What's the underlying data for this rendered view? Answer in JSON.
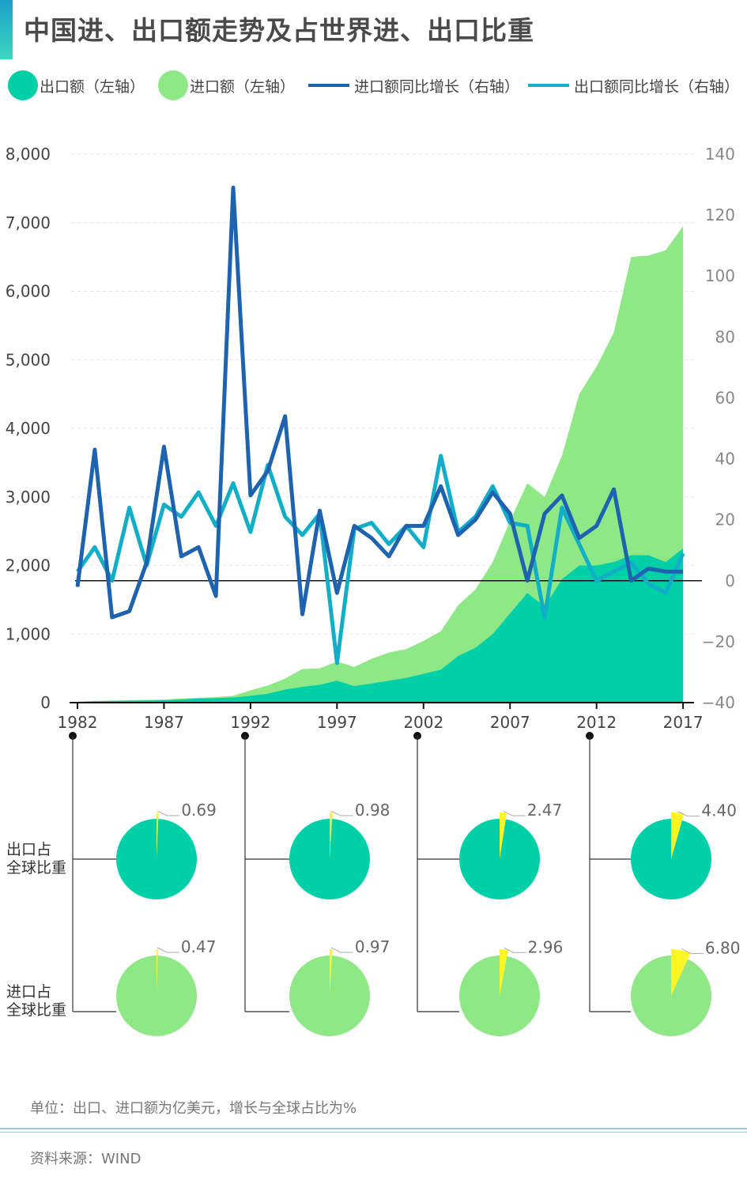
{
  "title": "中国进、出口额走势及占世界进、出口比重",
  "legend": {
    "export": "出口额（左轴）",
    "import": "进口额（左轴）",
    "import_growth": "进口额同比增长（右轴）",
    "export_growth": "出口额同比增长（右轴）"
  },
  "colors": {
    "export": "#00d0a8",
    "import": "#8ee885",
    "import_growth": "#1e63b0",
    "export_growth": "#12aec8",
    "highlight": "#fff426",
    "accent": "#1aa0c8"
  },
  "chart_data": [
    {
      "type": "area+line",
      "title": "中国进、出口额走势",
      "x": [
        1982,
        1983,
        1984,
        1985,
        1986,
        1987,
        1988,
        1989,
        1990,
        1991,
        1992,
        1993,
        1994,
        1995,
        1996,
        1997,
        1998,
        1999,
        2000,
        2001,
        2002,
        2003,
        2004,
        2005,
        2006,
        2007,
        2008,
        2009,
        2010,
        2011,
        2012,
        2013,
        2014,
        2015,
        2016,
        2017
      ],
      "x_ticks": [
        "1982",
        "1987",
        "1992",
        "1997",
        "2002",
        "2007",
        "2012",
        "2017"
      ],
      "y_left_ticks": [
        "8,000",
        "7,000",
        "6,000",
        "5,000",
        "4,000",
        "3,000",
        "2,000",
        "1,000",
        "0"
      ],
      "y_right_ticks": [
        "140",
        "120",
        "100",
        "80",
        "60",
        "40",
        "20",
        "0",
        "−20",
        "−40"
      ],
      "ylim_left": [
        0,
        8000
      ],
      "ylim_right": [
        -40,
        140
      ],
      "series": [
        {
          "name": "出口额",
          "axis": "left",
          "kind": "area",
          "values": [
            10,
            20,
            25,
            28,
            30,
            35,
            45,
            60,
            65,
            75,
            100,
            130,
            190,
            230,
            260,
            320,
            240,
            280,
            320,
            360,
            420,
            480,
            680,
            800,
            1000,
            1300,
            1600,
            1400,
            1800,
            2000,
            2000,
            2050,
            2150,
            2150,
            2050,
            2250
          ]
        },
        {
          "name": "进口额",
          "axis": "left",
          "kind": "area",
          "values": [
            15,
            25,
            30,
            35,
            40,
            45,
            60,
            70,
            80,
            100,
            180,
            250,
            350,
            490,
            500,
            600,
            520,
            640,
            730,
            780,
            900,
            1040,
            1420,
            1650,
            2050,
            2650,
            3200,
            3000,
            3600,
            4500,
            4900,
            5400,
            6500,
            6520,
            6600,
            6950
          ]
        },
        {
          "name": "进口额同比增长",
          "axis": "right",
          "kind": "line",
          "values": [
            -2,
            43,
            -12,
            -10,
            6,
            44,
            8,
            11,
            -5,
            129,
            28,
            36,
            54,
            -11,
            23,
            -4,
            18,
            14,
            8,
            18,
            18,
            31,
            15,
            20,
            29,
            22,
            0,
            22,
            28,
            14,
            18,
            30,
            0,
            4,
            3,
            3
          ]
        },
        {
          "name": "出口额同比增长",
          "axis": "right",
          "kind": "line",
          "values": [
            3,
            11,
            0,
            24,
            5,
            25,
            21,
            29,
            18,
            32,
            16,
            38,
            21,
            15,
            22,
            -27,
            17,
            19,
            12,
            18,
            11,
            41,
            16,
            21,
            31,
            19,
            18,
            -12,
            24,
            12,
            0,
            3,
            6,
            -1,
            -4,
            9
          ]
        }
      ]
    },
    {
      "type": "pie",
      "title": "出口占全球比重",
      "categories": [
        "1982",
        "1992",
        "2002",
        "2012"
      ],
      "values": [
        0.69,
        0.98,
        2.47,
        4.4
      ],
      "labels": [
        "0.69",
        "0.98",
        "2.47",
        "4.40"
      ]
    },
    {
      "type": "pie",
      "title": "进口占全球比重",
      "categories": [
        "1982",
        "1992",
        "2002",
        "2012"
      ],
      "values": [
        0.47,
        0.97,
        2.96,
        6.8
      ],
      "labels": [
        "0.47",
        "0.97",
        "2.96",
        "6.80"
      ]
    }
  ],
  "row_labels": {
    "export_share_line1": "出口占",
    "export_share_line2": "全球比重",
    "import_share_line1": "进口占",
    "import_share_line2": "全球比重"
  },
  "footer": {
    "unit_note": "单位：出口、进口额为亿美元，增长与全球占比为%",
    "source": "资料来源：WIND"
  }
}
